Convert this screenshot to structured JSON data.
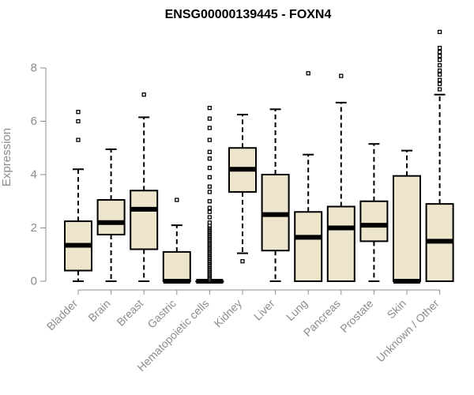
{
  "chart_data": {
    "type": "boxplot",
    "title": "ENSG00000139445 - FOXN4",
    "ylabel": "Expression",
    "xlabel": "",
    "ylim": [
      0,
      9.5
    ],
    "yticks": [
      0,
      2,
      4,
      6,
      8
    ],
    "grid": false,
    "box_color": "#ede6cc",
    "line_color": "#000000",
    "axis_color": "#8c8c8c",
    "categories": [
      "Bladder",
      "Brain",
      "Breast",
      "Gastric",
      "Hematopoietic cells",
      "Kidney",
      "Liver",
      "Lung",
      "Pancreas",
      "Prostate",
      "Skin",
      "Unknown / Other"
    ],
    "boxes": [
      {
        "min": 0,
        "q1": 0.4,
        "median": 1.35,
        "q3": 2.25,
        "max": 4.2,
        "outliers": [
          5.3,
          6.0,
          6.35
        ]
      },
      {
        "min": 0,
        "q1": 1.75,
        "median": 2.2,
        "q3": 3.05,
        "max": 4.95,
        "outliers": []
      },
      {
        "min": 0,
        "q1": 1.2,
        "median": 2.7,
        "q3": 3.4,
        "max": 6.15,
        "outliers": [
          7.0
        ]
      },
      {
        "min": 0,
        "q1": 0,
        "median": 0,
        "q3": 1.1,
        "max": 2.1,
        "outliers": [
          3.05
        ]
      },
      {
        "min": 0,
        "q1": 0,
        "median": 0,
        "q3": 0,
        "max": 0,
        "outliers": [
          0.05,
          0.1,
          0.15,
          0.2,
          0.25,
          0.3,
          0.35,
          0.4,
          0.45,
          0.5,
          0.55,
          0.6,
          0.65,
          0.7,
          0.75,
          0.8,
          0.85,
          0.9,
          0.95,
          1.0,
          1.05,
          1.1,
          1.15,
          1.2,
          1.25,
          1.3,
          1.35,
          1.4,
          1.45,
          1.5,
          1.55,
          1.6,
          1.65,
          1.7,
          1.75,
          1.8,
          1.85,
          1.9,
          1.95,
          2.0,
          2.05,
          2.1,
          2.2,
          2.4,
          2.6,
          2.75,
          3.0,
          3.35,
          3.55,
          3.9,
          4.25,
          4.6,
          4.85,
          5.3,
          5.75,
          6.1,
          6.5
        ]
      },
      {
        "min": 1.05,
        "q1": 3.35,
        "median": 4.2,
        "q3": 5.0,
        "max": 6.25,
        "outliers": [
          0.75
        ]
      },
      {
        "min": 0,
        "q1": 1.15,
        "median": 2.5,
        "q3": 4.0,
        "max": 6.45,
        "outliers": []
      },
      {
        "min": 0,
        "q1": 0,
        "median": 1.65,
        "q3": 2.6,
        "max": 4.75,
        "outliers": [
          7.8
        ]
      },
      {
        "min": 0,
        "q1": 0,
        "median": 2.0,
        "q3": 2.8,
        "max": 6.7,
        "outliers": [
          7.7
        ]
      },
      {
        "min": 0,
        "q1": 1.5,
        "median": 2.1,
        "q3": 3.0,
        "max": 5.15,
        "outliers": []
      },
      {
        "min": 0,
        "q1": 0,
        "median": 0,
        "q3": 3.95,
        "max": 4.9,
        "outliers": []
      },
      {
        "min": 0,
        "q1": 0,
        "median": 1.5,
        "q3": 2.9,
        "max": 7.0,
        "outliers": [
          7.2,
          7.4,
          7.55,
          7.75,
          7.9,
          8.1,
          8.3,
          8.45,
          8.6,
          8.75,
          9.35
        ]
      }
    ]
  }
}
